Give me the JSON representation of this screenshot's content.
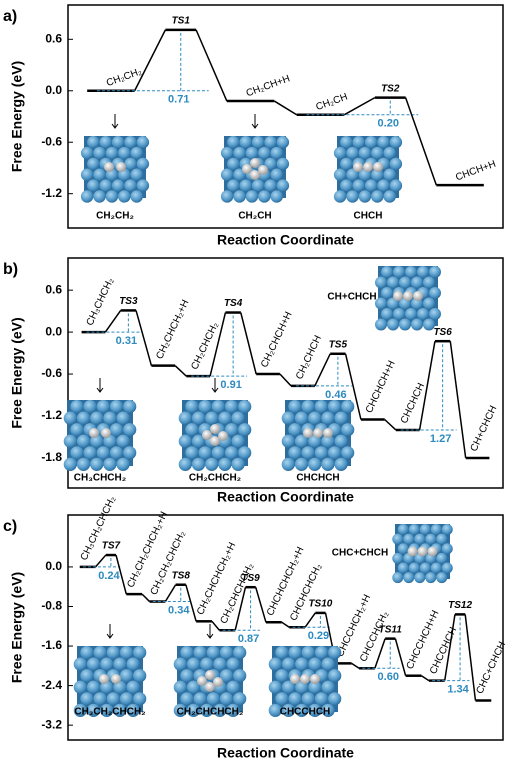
{
  "chart_data": [
    {
      "type": "energy-profile",
      "panel": "a)",
      "ylabel": "Free Energy (eV)",
      "xlabel": "Reaction Coordinate",
      "ylim": [
        -1.6,
        1.0
      ],
      "yticks": [
        0.6,
        {
          "value": 0,
          "label": "0.0"
        },
        -0.6,
        -1.2
      ],
      "states": [
        "CH₂CH₂",
        "TS1",
        "CH₂CH+H",
        "CH₂CH",
        "TS2",
        "CHCH+H"
      ],
      "values": [
        0.0,
        0.71,
        -0.12,
        -0.28,
        -0.08,
        -1.1
      ],
      "label_colors": [
        "#000000",
        "#000000",
        "#000000",
        "#000000",
        "#000000",
        "#d0202a"
      ],
      "barriers": [
        null,
        0.71,
        null,
        null,
        0.2,
        null
      ],
      "barrier_labels": [
        null,
        "0.71",
        null,
        null,
        "0.20",
        null
      ],
      "color": "#000000",
      "barrier_color": "#2e8bc0",
      "insets": [
        "CH₂CH₂",
        "CH₂CH",
        "CHCH"
      ],
      "inset_colors": [
        "#000000",
        "#000000",
        "#d0202a"
      ]
    },
    {
      "type": "energy-profile",
      "panel": "b)",
      "ylabel": "Free Energy (eV)",
      "xlabel": "Reaction Coordinate",
      "ylim": [
        -2.23,
        1.06
      ],
      "yticks": [
        0.6,
        {
          "value": 0,
          "label": "0.0"
        },
        -0.6,
        -1.2,
        -1.8
      ],
      "states": [
        "CH₃CHCH₂",
        "TS3",
        "CH₂CHCH₂+H",
        "CH₂CHCH₂",
        "TS4",
        "CH₂CHCH+H",
        "CH₂CHCH",
        "TS5",
        "CHCHCH+H",
        "CHCHCH",
        "TS6",
        "CH+CHCH"
      ],
      "values": [
        0.0,
        0.31,
        -0.48,
        -0.63,
        0.28,
        -0.6,
        -0.77,
        -0.31,
        -1.25,
        -1.4,
        -0.13,
        -1.8
      ],
      "label_colors": [
        "#000000",
        "#000000",
        "#000000",
        "#000000",
        "#000000",
        "#000000",
        "#000000",
        "#000000",
        "#000000",
        "#000000",
        "#000000",
        "#d0202a"
      ],
      "barriers": [
        null,
        0.31,
        null,
        null,
        0.91,
        null,
        null,
        0.46,
        null,
        null,
        1.27,
        null
      ],
      "barrier_labels": [
        null,
        "0.31",
        null,
        null,
        "0.91",
        null,
        null,
        "0.46",
        null,
        null,
        "1.27",
        null
      ],
      "color": "#000000",
      "barrier_color": "#2e8bc0",
      "insets": [
        "CH₃CHCH₂",
        "CH₂CHCH₂",
        "CHCHCH"
      ],
      "inset_colors": [
        "#000000",
        "#000000",
        "#000000"
      ],
      "callout": "CH+CHCH"
    },
    {
      "type": "energy-profile",
      "panel": "c)",
      "ylabel": "Free Energy (eV)",
      "xlabel": "Reaction Coordinate",
      "ylim": [
        -3.5,
        1.05
      ],
      "yticks": [
        {
          "value": 0,
          "label": "0.0"
        },
        -0.8,
        -1.6,
        -2.4,
        -3.2
      ],
      "states": [
        "CH₃CH₂CHCH₂",
        "TS7",
        "CH₂CH₂CHCH₂+H",
        "CH₂CH₂CHCH₂",
        "TS8",
        "CH₂CHCHCH₂+H",
        "CH₂CHCHCH₂",
        "TS9",
        "CHCHCHCH₂+H",
        "CHCHCHCH₂",
        "TS10",
        "CHCCHCH₂+H",
        "CHCCHCH₂",
        "TS11",
        "CHCCHCH+H",
        "CHCCHCH",
        "TS12",
        "CHC+CHCH"
      ],
      "values": [
        0.0,
        0.24,
        -0.55,
        -0.7,
        -0.36,
        -1.1,
        -1.28,
        -0.41,
        -1.12,
        -1.22,
        -0.93,
        -1.95,
        -2.05,
        -1.45,
        -2.2,
        -2.3,
        -0.96,
        -2.7
      ],
      "label_colors": [
        "#000000",
        "#000000",
        "#000000",
        "#000000",
        "#000000",
        "#000000",
        "#000000",
        "#000000",
        "#000000",
        "#000000",
        "#000000",
        "#000000",
        "#000000",
        "#000000",
        "#000000",
        "#000000",
        "#000000",
        "#d0202a"
      ],
      "barriers": [
        null,
        0.24,
        null,
        null,
        0.34,
        null,
        null,
        0.87,
        null,
        null,
        0.29,
        null,
        null,
        0.6,
        null,
        null,
        1.34,
        null
      ],
      "barrier_labels": [
        null,
        "0.24",
        null,
        null,
        "0.34",
        null,
        null,
        "0.87",
        null,
        null,
        "0.29",
        null,
        null,
        "0.60",
        null,
        null,
        "1.34",
        null
      ],
      "color": "#000000",
      "barrier_color": "#2e8bc0",
      "insets": [
        "CH₃CH₂CHCH₂",
        "CH₂CHCHCH₂",
        "CHCCHCH"
      ],
      "inset_colors": [
        "#000000",
        "#000000",
        "#000000"
      ],
      "callout": "CHC+CHCH"
    }
  ]
}
